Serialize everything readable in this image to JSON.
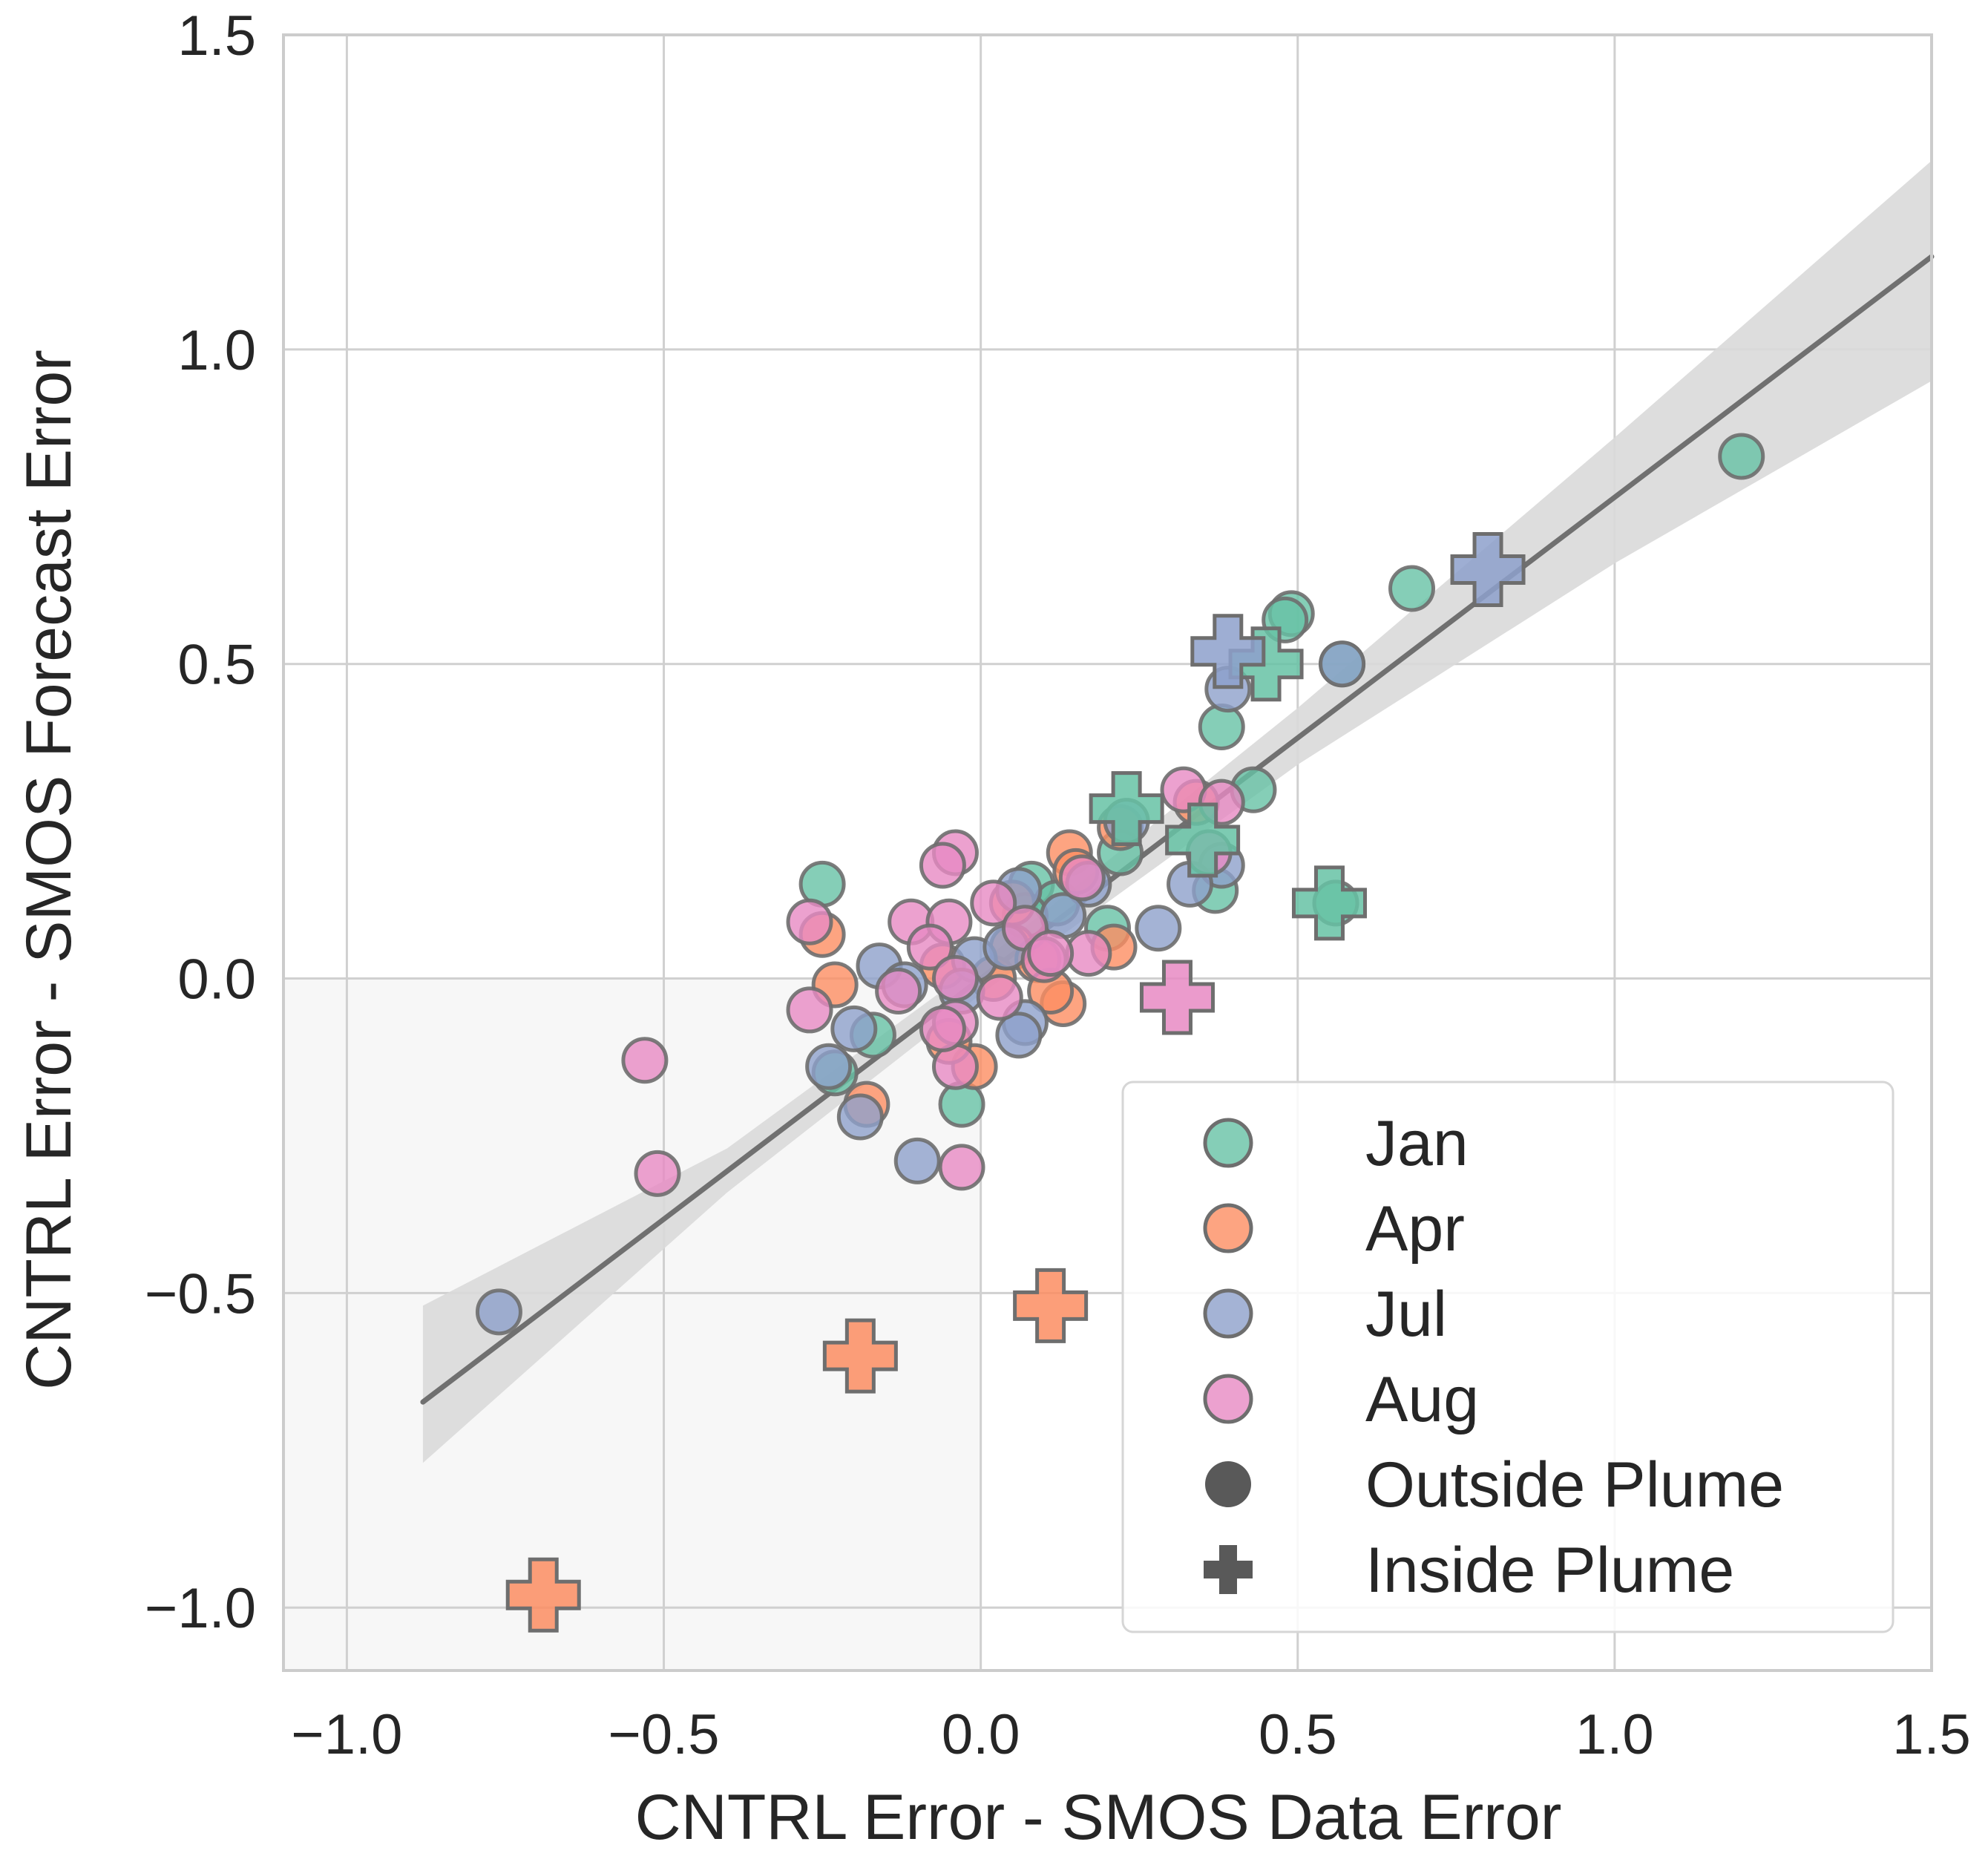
{
  "chart_data": {
    "type": "scatter",
    "title": "",
    "xlabel": "CNTRL Error - SMOS Data Error",
    "ylabel": "CNTRL Error - SMOS Forecast Error",
    "xlim": [
      -1.1,
      1.5
    ],
    "ylim": [
      -1.1,
      1.5
    ],
    "xticks": [
      -1.0,
      -0.5,
      0.0,
      0.5,
      1.0,
      1.5
    ],
    "yticks": [
      -1.0,
      -0.5,
      0.0,
      0.5,
      1.0,
      1.5
    ],
    "xtick_labels": [
      "−1.0",
      "−0.5",
      "0.0",
      "0.5",
      "1.0",
      "1.5"
    ],
    "ytick_labels": [
      "−1.0",
      "−0.5",
      "0.0",
      "0.5",
      "1.0",
      "1.5"
    ],
    "grid": true,
    "shaded_quadrant": {
      "x": [
        -1.1,
        0.0
      ],
      "y": [
        -1.1,
        0.0
      ]
    },
    "regression": {
      "x_range": [
        -0.88,
        1.5
      ],
      "slope": 0.765,
      "intercept": 0.0,
      "ci_band": [
        {
          "x": -0.88,
          "lo": -0.77,
          "hi": -0.52
        },
        {
          "x": -0.4,
          "lo": -0.34,
          "hi": -0.27
        },
        {
          "x": 0.0,
          "lo": -0.025,
          "hi": 0.025
        },
        {
          "x": 0.5,
          "lo": 0.34,
          "hi": 0.43
        },
        {
          "x": 1.0,
          "lo": 0.66,
          "hi": 0.86
        },
        {
          "x": 1.5,
          "lo": 0.95,
          "hi": 1.3
        }
      ],
      "line_color": "#707070",
      "band_color": "#d9d9d9"
    },
    "legend": {
      "position": "lower-right",
      "entries": [
        {
          "label": "Jan",
          "marker": "circle",
          "color": "#66c2a5"
        },
        {
          "label": "Apr",
          "marker": "circle",
          "color": "#fc8d62"
        },
        {
          "label": "Jul",
          "marker": "circle",
          "color": "#8da0cb"
        },
        {
          "label": "Aug",
          "marker": "circle",
          "color": "#e78ac3"
        },
        {
          "label": "Outside Plume",
          "marker": "circle",
          "color": "#595959"
        },
        {
          "label": "Inside Plume",
          "marker": "plus",
          "color": "#595959"
        }
      ]
    },
    "series": [
      {
        "name": "Jan",
        "color": "#66c2a5",
        "outside_plume": [
          [
            1.2,
            0.83
          ],
          [
            0.68,
            0.62
          ],
          [
            0.49,
            0.58
          ],
          [
            0.48,
            0.57
          ],
          [
            0.57,
            0.5
          ],
          [
            0.38,
            0.4
          ],
          [
            0.43,
            0.3
          ],
          [
            0.22,
            0.2
          ],
          [
            0.37,
            0.14
          ],
          [
            0.56,
            0.12
          ],
          [
            -0.25,
            0.15
          ],
          [
            0.08,
            0.15
          ],
          [
            0.2,
            0.08
          ],
          [
            0.12,
            0.12
          ],
          [
            -0.17,
            -0.09
          ],
          [
            -0.23,
            -0.15
          ],
          [
            -0.03,
            -0.2
          ],
          [
            0.07,
            0.1
          ]
        ],
        "inside_plume": [
          [
            0.45,
            0.5
          ],
          [
            0.23,
            0.27
          ],
          [
            0.35,
            0.22
          ],
          [
            0.55,
            0.12
          ]
        ]
      },
      {
        "name": "Apr",
        "color": "#fc8d62",
        "outside_plume": [
          [
            0.14,
            0.2
          ],
          [
            0.22,
            0.24
          ],
          [
            0.34,
            0.28
          ],
          [
            0.15,
            0.17
          ],
          [
            0.05,
            0.12
          ],
          [
            -0.25,
            0.07
          ],
          [
            -0.23,
            -0.01
          ],
          [
            0.21,
            0.05
          ],
          [
            0.13,
            -0.04
          ],
          [
            -0.18,
            -0.2
          ],
          [
            -0.01,
            -0.14
          ],
          [
            0.02,
            0.0
          ],
          [
            0.05,
            0.05
          ],
          [
            -0.05,
            -0.1
          ],
          [
            0.09,
            0.03
          ],
          [
            -0.06,
            0.02
          ],
          [
            0.11,
            -0.02
          ]
        ],
        "inside_plume": [
          [
            0.11,
            -0.52
          ],
          [
            -0.19,
            -0.6
          ],
          [
            -0.69,
            -0.98
          ]
        ]
      },
      {
        "name": "Jul",
        "color": "#8da0cb",
        "outside_plume": [
          [
            0.57,
            0.5
          ],
          [
            0.39,
            0.46
          ],
          [
            0.38,
            0.18
          ],
          [
            0.33,
            0.15
          ],
          [
            0.28,
            0.08
          ],
          [
            0.23,
            0.25
          ],
          [
            0.17,
            0.15
          ],
          [
            0.06,
            0.14
          ],
          [
            0.13,
            0.1
          ],
          [
            -0.16,
            0.02
          ],
          [
            -0.2,
            -0.08
          ],
          [
            -0.19,
            -0.22
          ],
          [
            -0.24,
            -0.14
          ],
          [
            -0.1,
            -0.29
          ],
          [
            0.07,
            -0.07
          ],
          [
            0.06,
            -0.09
          ],
          [
            -0.01,
            0.03
          ],
          [
            -0.76,
            -0.53
          ],
          [
            0.04,
            0.05
          ],
          [
            -0.03,
            -0.02
          ],
          [
            -0.12,
            -0.01
          ]
        ],
        "inside_plume": [
          [
            0.8,
            0.65
          ],
          [
            0.39,
            0.52
          ]
        ]
      },
      {
        "name": "Aug",
        "color": "#e78ac3",
        "outside_plume": [
          [
            0.32,
            0.3
          ],
          [
            0.38,
            0.28
          ],
          [
            0.36,
            0.2
          ],
          [
            -0.04,
            0.2
          ],
          [
            -0.06,
            0.18
          ],
          [
            0.16,
            0.16
          ],
          [
            -0.27,
            0.09
          ],
          [
            0.02,
            0.12
          ],
          [
            -0.11,
            0.09
          ],
          [
            -0.05,
            0.09
          ],
          [
            0.07,
            0.08
          ],
          [
            -0.08,
            0.05
          ],
          [
            0.1,
            0.03
          ],
          [
            0.17,
            0.04
          ],
          [
            -0.04,
            0.0
          ],
          [
            -0.27,
            -0.05
          ],
          [
            -0.13,
            -0.02
          ],
          [
            -0.04,
            -0.07
          ],
          [
            0.03,
            -0.03
          ],
          [
            -0.04,
            -0.14
          ],
          [
            -0.53,
            -0.13
          ],
          [
            -0.51,
            -0.31
          ],
          [
            -0.03,
            -0.3
          ],
          [
            0.11,
            0.04
          ],
          [
            -0.06,
            -0.08
          ]
        ],
        "inside_plume": [
          [
            0.31,
            -0.03
          ]
        ]
      }
    ]
  }
}
